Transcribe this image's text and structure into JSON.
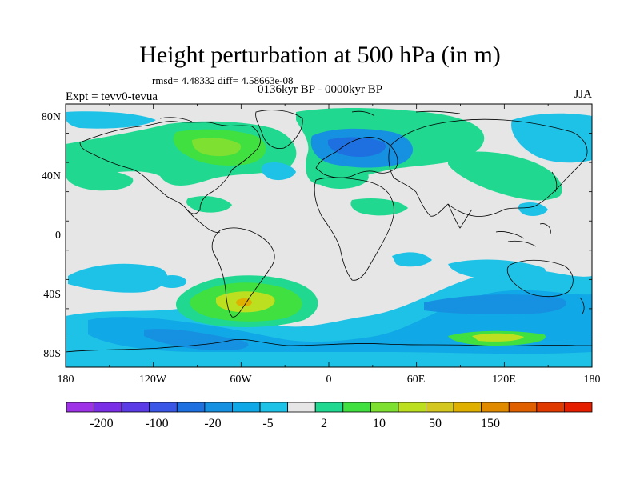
{
  "title": "Height perturbation at 500 hPa (in m)",
  "stats": "rmsd= 4.48332 diff= 4.58663e-08",
  "experiment": "Expt = tevv0-tevua",
  "period": "0136kyr BP - 0000kyr BP",
  "season": "JJA",
  "lat_labels": [
    "80N",
    "40N",
    "0",
    "40S",
    "80S"
  ],
  "lon_labels": [
    "180",
    "120W",
    "60W",
    "0",
    "60E",
    "120E",
    "180"
  ],
  "colorbar": {
    "colors": [
      "#9d32e6",
      "#7a2fe6",
      "#5a3be6",
      "#3a56e6",
      "#1e6fe0",
      "#1690e0",
      "#10a8e6",
      "#1ec2e6",
      "#e6e6e6",
      "#20d890",
      "#40e040",
      "#7ee030",
      "#bce020",
      "#d4c820",
      "#e0b000",
      "#e08a00",
      "#e06000",
      "#e03a00",
      "#e61e00"
    ],
    "labels": [
      "-200",
      "-100",
      "-20",
      "-5",
      "2",
      "10",
      "50",
      "150"
    ]
  },
  "map_colors": {
    "background": "#e6e6e6",
    "light_blue": "#1ec2e6",
    "blue": "#10a8e6",
    "dark_blue": "#1690e0",
    "deep_blue": "#1e6fe0",
    "mint": "#20d890",
    "green": "#40e040",
    "yellow_green": "#bce020",
    "orange": "#e0b000",
    "coast": "#000000"
  }
}
